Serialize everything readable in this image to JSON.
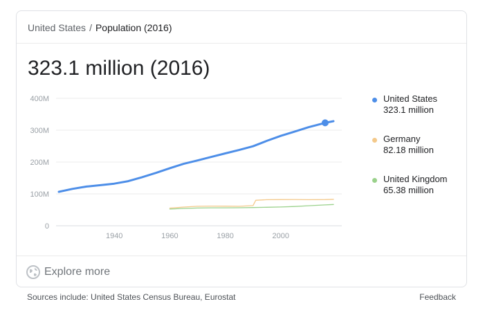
{
  "breadcrumb": {
    "country": "United States",
    "separator": "/",
    "topic": "Population (2016)"
  },
  "headline": "323.1 million (2016)",
  "chart_data": {
    "type": "line",
    "y_ticks": [
      "400M",
      "300M",
      "200M",
      "100M",
      "0"
    ],
    "y_tick_values": [
      400,
      300,
      200,
      100,
      0
    ],
    "x_ticks": [
      "1940",
      "1960",
      "1980",
      "2000"
    ],
    "x_tick_values": [
      1940,
      1960,
      1980,
      2000
    ],
    "xlim": [
      1919,
      2022
    ],
    "ylim": [
      0,
      400
    ],
    "y_unit": "millions",
    "grid": "horizontal",
    "legend_position": "right",
    "highlight": {
      "series": "United States",
      "year": 2016
    },
    "series": [
      {
        "name": "United States",
        "display_value": "323.1 million",
        "color": "#4d8ee8",
        "x": [
          1920,
          1925,
          1930,
          1935,
          1940,
          1945,
          1950,
          1955,
          1960,
          1965,
          1970,
          1975,
          1980,
          1985,
          1990,
          1995,
          2000,
          2005,
          2010,
          2016,
          2019
        ],
        "values": [
          106.5,
          115.8,
          123.1,
          127.3,
          132.2,
          139.9,
          152.3,
          165.9,
          180.7,
          194.3,
          205.1,
          216.0,
          227.2,
          237.9,
          249.6,
          266.6,
          282.2,
          295.5,
          309.3,
          323.1,
          328.2
        ]
      },
      {
        "name": "Germany",
        "display_value": "82.18 million",
        "color": "#f4c98a",
        "x": [
          1960,
          1965,
          1970,
          1975,
          1980,
          1985,
          1990,
          1991,
          1995,
          2000,
          2005,
          2010,
          2016,
          2019
        ],
        "values": [
          55.4,
          58.6,
          61.0,
          61.8,
          61.6,
          61.0,
          63.3,
          80.0,
          81.7,
          82.2,
          82.5,
          81.8,
          82.18,
          83.1
        ]
      },
      {
        "name": "United Kingdom",
        "display_value": "65.38 million",
        "color": "#9ad18b",
        "x": [
          1960,
          1965,
          1970,
          1975,
          1980,
          1985,
          1990,
          1995,
          2000,
          2005,
          2010,
          2016,
          2019
        ],
        "values": [
          52.4,
          54.3,
          55.6,
          56.2,
          56.3,
          56.6,
          57.2,
          58.0,
          58.9,
          60.4,
          62.8,
          65.38,
          66.8
        ]
      }
    ]
  },
  "explore": {
    "label": "Explore more"
  },
  "footer": {
    "sources": "Sources include: United States Census Bureau, Eurostat",
    "feedback": "Feedback"
  }
}
